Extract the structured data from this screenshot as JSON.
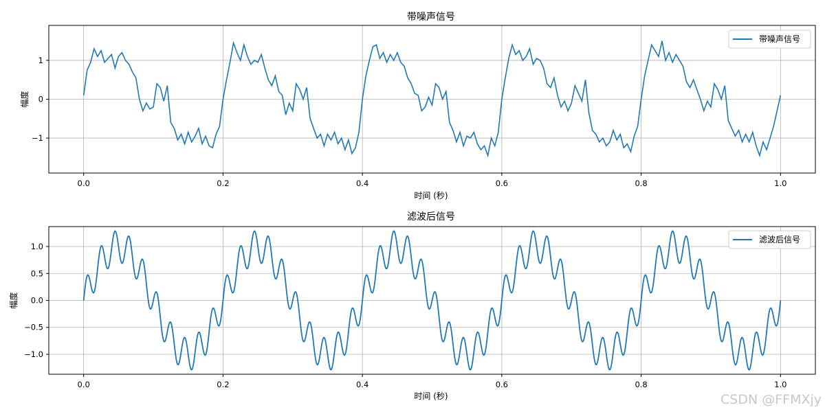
{
  "watermark": "CSDN @FFMXjy",
  "chart_data": [
    {
      "type": "line",
      "title": "带噪声信号",
      "xlabel": "时间 (秒)",
      "ylabel": "幅度",
      "xlim": [
        -0.05,
        1.05
      ],
      "ylim": [
        -1.9,
        1.9
      ],
      "xticks": [
        0.0,
        0.2,
        0.4,
        0.6,
        0.8,
        1.0
      ],
      "xtick_labels": [
        "0.0",
        "0.2",
        "0.4",
        "0.6",
        "0.8",
        "1.0"
      ],
      "yticks": [
        -1,
        0,
        1
      ],
      "ytick_labels": [
        "−1",
        "0",
        "1"
      ],
      "grid": true,
      "legend": "top-right",
      "color": "#1f77b4",
      "series": [
        {
          "name": "带噪声信号",
          "x": [
            0.0,
            0.005,
            0.01,
            0.015,
            0.02,
            0.025,
            0.03,
            0.035,
            0.04,
            0.045,
            0.05,
            0.055,
            0.06,
            0.065,
            0.07,
            0.075,
            0.08,
            0.085,
            0.09,
            0.095,
            0.1,
            0.105,
            0.11,
            0.115,
            0.12,
            0.125,
            0.13,
            0.135,
            0.14,
            0.145,
            0.15,
            0.155,
            0.16,
            0.165,
            0.17,
            0.175,
            0.18,
            0.185,
            0.19,
            0.195,
            0.2,
            0.205,
            0.21,
            0.215,
            0.22,
            0.225,
            0.23,
            0.235,
            0.24,
            0.245,
            0.25,
            0.255,
            0.26,
            0.265,
            0.27,
            0.275,
            0.28,
            0.285,
            0.29,
            0.295,
            0.3,
            0.305,
            0.31,
            0.315,
            0.32,
            0.325,
            0.33,
            0.335,
            0.34,
            0.345,
            0.35,
            0.355,
            0.36,
            0.365,
            0.37,
            0.375,
            0.38,
            0.385,
            0.39,
            0.395,
            0.4,
            0.405,
            0.41,
            0.415,
            0.42,
            0.425,
            0.43,
            0.435,
            0.44,
            0.445,
            0.45,
            0.455,
            0.46,
            0.465,
            0.47,
            0.475,
            0.48,
            0.485,
            0.49,
            0.495,
            0.5,
            0.505,
            0.51,
            0.515,
            0.52,
            0.525,
            0.53,
            0.535,
            0.54,
            0.545,
            0.55,
            0.555,
            0.56,
            0.565,
            0.57,
            0.575,
            0.58,
            0.585,
            0.59,
            0.595,
            0.6,
            0.605,
            0.61,
            0.615,
            0.62,
            0.625,
            0.63,
            0.635,
            0.64,
            0.645,
            0.65,
            0.655,
            0.66,
            0.665,
            0.67,
            0.675,
            0.68,
            0.685,
            0.69,
            0.695,
            0.7,
            0.705,
            0.71,
            0.715,
            0.72,
            0.725,
            0.73,
            0.735,
            0.74,
            0.745,
            0.75,
            0.755,
            0.76,
            0.765,
            0.77,
            0.775,
            0.78,
            0.785,
            0.79,
            0.795,
            0.8,
            0.805,
            0.81,
            0.815,
            0.82,
            0.825,
            0.83,
            0.835,
            0.84,
            0.845,
            0.85,
            0.855,
            0.86,
            0.865,
            0.87,
            0.875,
            0.88,
            0.885,
            0.89,
            0.895,
            0.9,
            0.905,
            0.91,
            0.915,
            0.92,
            0.925,
            0.93,
            0.935,
            0.94,
            0.945,
            0.95,
            0.955,
            0.96,
            0.965,
            0.97,
            0.975,
            0.98,
            0.985,
            0.99,
            0.995,
            1.0
          ],
          "y": [
            0.1,
            0.75,
            0.95,
            1.3,
            1.1,
            1.25,
            0.95,
            1.05,
            1.15,
            0.8,
            1.1,
            1.2,
            1.0,
            0.9,
            0.7,
            0.55,
            0.0,
            -0.3,
            -0.1,
            -0.25,
            -0.2,
            0.4,
            0.3,
            -0.05,
            0.35,
            -0.6,
            -0.75,
            -1.05,
            -0.9,
            -1.15,
            -0.85,
            -1.1,
            -0.95,
            -0.75,
            -1.15,
            -0.95,
            -1.2,
            -1.25,
            -0.9,
            -0.7,
            0.0,
            0.5,
            0.95,
            1.45,
            1.2,
            1.0,
            1.4,
            1.1,
            0.9,
            1.0,
            0.95,
            1.15,
            0.8,
            0.5,
            0.35,
            0.6,
            0.2,
            0.1,
            -0.4,
            -0.1,
            -0.3,
            0.4,
            0.25,
            0.0,
            0.3,
            -0.5,
            -0.75,
            -1.0,
            -0.9,
            -1.2,
            -0.9,
            -1.05,
            -0.85,
            -1.15,
            -1.0,
            -1.3,
            -1.05,
            -1.4,
            -1.25,
            -0.85,
            0.0,
            0.6,
            1.0,
            1.35,
            1.4,
            1.05,
            1.2,
            0.95,
            1.15,
            1.0,
            1.2,
            0.95,
            0.85,
            0.55,
            0.4,
            0.15,
            0.1,
            -0.3,
            -0.2,
            0.05,
            -0.15,
            0.4,
            0.3,
            0.0,
            0.2,
            -0.6,
            -0.8,
            -1.1,
            -0.85,
            -1.2,
            -0.95,
            -1.0,
            -0.85,
            -1.15,
            -1.3,
            -1.2,
            -1.45,
            -1.0,
            -1.2,
            -0.85,
            0.0,
            0.55,
            1.05,
            1.4,
            1.15,
            1.25,
            1.0,
            1.1,
            1.3,
            0.9,
            1.05,
            1.0,
            0.8,
            0.4,
            0.3,
            0.55,
            0.1,
            -0.2,
            -0.05,
            -0.3,
            -0.1,
            0.35,
            0.15,
            -0.05,
            0.5,
            -0.35,
            -0.8,
            -0.9,
            -1.1,
            -1.0,
            -1.2,
            -1.1,
            -0.8,
            -1.05,
            -0.9,
            -1.25,
            -1.15,
            -1.35,
            -0.95,
            -0.7,
            0.0,
            0.6,
            1.0,
            1.4,
            1.25,
            1.1,
            1.5,
            1.0,
            1.2,
            0.95,
            1.15,
            1.0,
            0.85,
            0.45,
            0.3,
            0.5,
            0.25,
            0.0,
            -0.3,
            -0.05,
            -0.2,
            0.4,
            0.25,
            0.0,
            0.35,
            -0.55,
            -0.75,
            -0.95,
            -0.8,
            -1.1,
            -0.9,
            -1.1,
            -0.85,
            -1.2,
            -1.45,
            -1.1,
            -1.3,
            -1.0,
            -0.7,
            -0.3,
            0.1
          ]
        }
      ]
    },
    {
      "type": "line",
      "title": "滤波后信号",
      "xlabel": "时间 (秒)",
      "ylabel": "幅度",
      "xlim": [
        -0.05,
        1.05
      ],
      "ylim": [
        -1.37,
        1.37
      ],
      "xticks": [
        0.0,
        0.2,
        0.4,
        0.6,
        0.8,
        1.0
      ],
      "xtick_labels": [
        "0.0",
        "0.2",
        "0.4",
        "0.6",
        "0.8",
        "1.0"
      ],
      "yticks": [
        -1.0,
        -0.5,
        0.0,
        0.5,
        1.0
      ],
      "ytick_labels": [
        "−1.0",
        "−0.5",
        "0.0",
        "0.5",
        "1.0"
      ],
      "grid": true,
      "legend": "top-right",
      "color": "#1f77b4",
      "series": [
        {
          "name": "滤波后信号",
          "function": "sin(2π·5t) + 0.3·sin(2π·50t)",
          "x_range": [
            0.0,
            1.0
          ]
        }
      ]
    }
  ]
}
